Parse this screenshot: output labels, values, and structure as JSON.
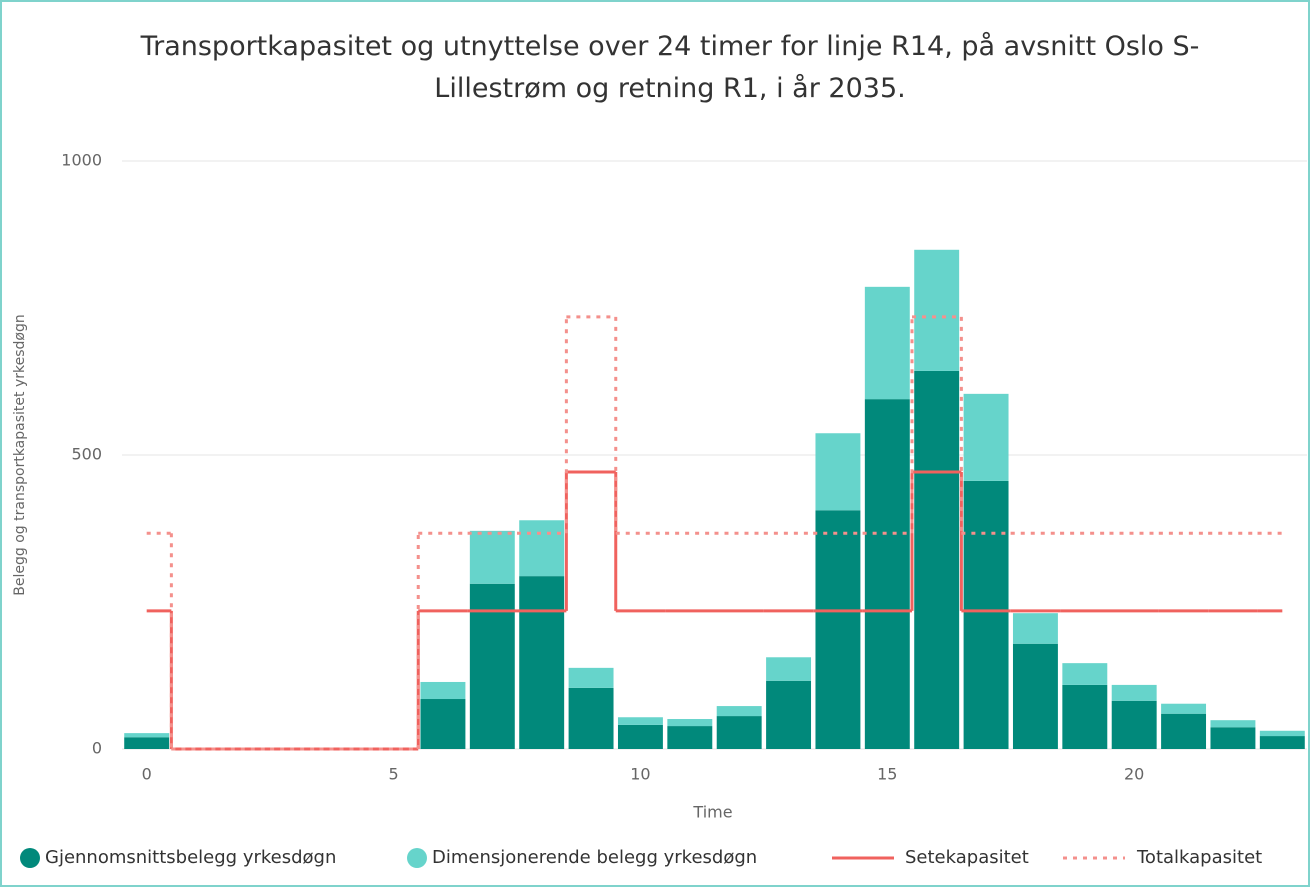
{
  "chart_data": {
    "type": "stacked_bar_step",
    "title": "Transportkapasitet og utnyttelse over 24 timer for linje R14, på avsnitt Oslo S-Lillestrøm og retning R1, i år 2035.",
    "xlabel": "Time",
    "ylabel": "Belegg og transportkapasitet yrkesdøgn",
    "x": [
      0,
      1,
      2,
      3,
      4,
      5,
      6,
      7,
      8,
      9,
      10,
      11,
      12,
      13,
      14,
      15,
      16,
      17,
      18,
      19,
      20,
      21,
      22,
      23
    ],
    "xlim": [
      -0.5,
      23.5
    ],
    "xticks": [
      0,
      5,
      10,
      15,
      20
    ],
    "ylim": [
      0,
      1000
    ],
    "yticks": [
      0,
      500,
      1000
    ],
    "grid": true,
    "legend": "bottom",
    "series": [
      {
        "name": "Gjennomsnittsbelegg yrkesdøgn",
        "kind": "bar",
        "color": "#01897b",
        "values": [
          20,
          0,
          0,
          0,
          0,
          0,
          85,
          281,
          294,
          104,
          41,
          39,
          56,
          116,
          406,
          595,
          643,
          456,
          179,
          109,
          82,
          60,
          37,
          22
        ]
      },
      {
        "name": "Dimensjonerende belegg yrkesdøgn",
        "kind": "bar",
        "color": "#66d4cb",
        "values": [
          7,
          0,
          0,
          0,
          0,
          0,
          29,
          90,
          95,
          34,
          13,
          12,
          17,
          40,
          131,
          191,
          206,
          148,
          52,
          37,
          27,
          17,
          12,
          9
        ]
      },
      {
        "name": "Setekapasitet",
        "kind": "step",
        "dash": "solid",
        "color": "#f0625e",
        "values": [
          235,
          0,
          0,
          0,
          0,
          0,
          235,
          235,
          235,
          471,
          235,
          235,
          235,
          235,
          235,
          235,
          471,
          235,
          235,
          235,
          235,
          235,
          235,
          235
        ]
      },
      {
        "name": "Totalkapasitet",
        "kind": "step",
        "dash": "dotted",
        "color": "#f4908c",
        "values": [
          367,
          0,
          0,
          0,
          0,
          0,
          367,
          367,
          367,
          735,
          367,
          367,
          367,
          367,
          367,
          367,
          735,
          367,
          367,
          367,
          367,
          367,
          367,
          367
        ]
      }
    ]
  }
}
